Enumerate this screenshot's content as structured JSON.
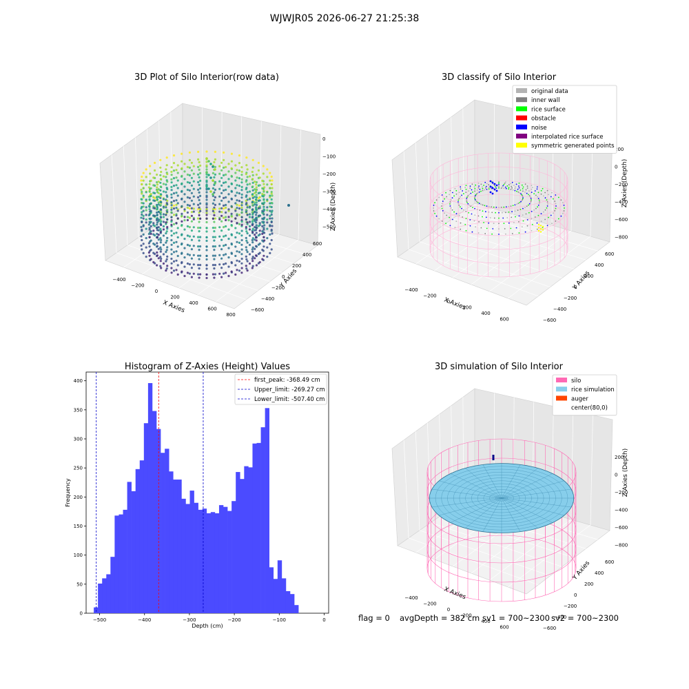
{
  "figure": {
    "suptitle": "WJWJR05 2026-06-27 21:25:38",
    "footer": {
      "flag": "flag = 0",
      "avg_depth": "avgDepth = 382 cm",
      "sv1": "sv1 = 700~2300",
      "sv2": "sv2 = 700~2300"
    }
  },
  "chart_data": [
    {
      "type": "scatter",
      "projection": "3d",
      "title": "3D Plot of Silo Interior(row data)",
      "xlabel": "X Axies",
      "ylabel": "Y Axies",
      "zlabel": "Z Axies (Depth)",
      "x_ticks": [
        "−400",
        "−200",
        "0",
        "200",
        "400",
        "600",
        "800"
      ],
      "y_ticks": [
        "−600",
        "−400",
        "−200",
        "0",
        "200",
        "400",
        "600"
      ],
      "z_ticks": [
        "0",
        "−100",
        "−200",
        "−300",
        "−400",
        "−500"
      ],
      "colormap": "viridis",
      "grid": true
    },
    {
      "type": "scatter",
      "projection": "3d",
      "title": "3D classify of Silo Interior",
      "xlabel": "X Axies",
      "ylabel": "Y Axies",
      "zlabel": "Z Axies (Depth)",
      "x_ticks": [
        "−400",
        "−200",
        "0",
        "200",
        "400",
        "600"
      ],
      "y_ticks": [
        "−600",
        "−400",
        "−200",
        "0",
        "200",
        "400",
        "600"
      ],
      "z_ticks": [
        "200",
        "0",
        "−200",
        "−400",
        "−600",
        "−800"
      ],
      "legend_position": "top-right",
      "legend": [
        {
          "label": "original data",
          "color": "#b3b3b3"
        },
        {
          "label": "inner wall",
          "color": "#808080"
        },
        {
          "label": "rice surface",
          "color": "#00ff00"
        },
        {
          "label": "obstacle",
          "color": "#ff0000"
        },
        {
          "label": "noise",
          "color": "#0000ff"
        },
        {
          "label": "interpolated rice surface",
          "color": "#800080"
        },
        {
          "label": "symmetric generated points",
          "color": "#ffff00"
        }
      ],
      "grid": true
    },
    {
      "type": "bar",
      "title": "Histogram of Z-Axies (Height) Values",
      "xlabel": "Depth (cm)",
      "ylabel": "Frequency",
      "xlim": [
        -530,
        10
      ],
      "ylim": [
        0,
        415
      ],
      "x_ticks": [
        -500,
        -400,
        -300,
        -200,
        -100,
        0
      ],
      "x_tick_labels": [
        "−500",
        "−400",
        "−300",
        "−200",
        "−100",
        "0"
      ],
      "y_ticks": [
        0,
        50,
        100,
        150,
        200,
        250,
        300,
        350,
        400
      ],
      "bin_start": -513,
      "bin_width": 9.3,
      "values": [
        10,
        51,
        60,
        67,
        97,
        168,
        170,
        178,
        226,
        210,
        248,
        263,
        327,
        396,
        348,
        317,
        276,
        283,
        244,
        230,
        230,
        197,
        188,
        211,
        190,
        178,
        180,
        172,
        174,
        172,
        186,
        183,
        176,
        193,
        243,
        231,
        253,
        251,
        292,
        293,
        320,
        353,
        79,
        59,
        91,
        60,
        38,
        33,
        14
      ],
      "bar_color": "#4b4bff",
      "lines": [
        {
          "label": "first_peak: -368.49 cm",
          "x": -368.49,
          "color": "#ff0000"
        },
        {
          "label": "Upper_limit: -269.27 cm",
          "x": -269.27,
          "color": "#0000cc"
        },
        {
          "label": "Lower_limit: -507.40 cm",
          "x": -507.4,
          "color": "#0000cc"
        }
      ],
      "legend_position": "top-right"
    },
    {
      "type": "surface",
      "projection": "3d",
      "title": "3D simulation of Silo Interior",
      "xlabel": "X Axies",
      "ylabel": "Y Axies",
      "zlabel": "Z Axies (Depth)",
      "x_ticks": [
        "−400",
        "−200",
        "0",
        "200",
        "400",
        "600"
      ],
      "y_ticks": [
        "−600",
        "−400",
        "−200",
        "0",
        "200",
        "400",
        "600"
      ],
      "z_ticks": [
        "200",
        "0",
        "−200",
        "−400",
        "−600",
        "−800"
      ],
      "legend_position": "top-right",
      "legend": [
        {
          "label": "silo",
          "color": "#ff69b4"
        },
        {
          "label": "rice simulation",
          "color": "#87ceeb"
        },
        {
          "label": "auger",
          "color": "#ff4500"
        },
        {
          "label": "center(80,0)",
          "color": ""
        }
      ],
      "grid": true
    }
  ]
}
